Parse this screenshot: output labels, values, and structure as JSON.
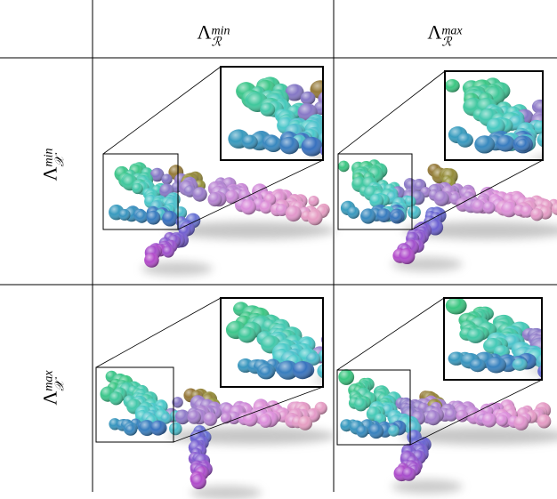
{
  "columns": [
    {
      "symbol": "Λ",
      "subscript": "ℛ",
      "superscript": "min"
    },
    {
      "symbol": "Λ",
      "subscript": "ℛ",
      "superscript": "max"
    }
  ],
  "rows": [
    {
      "symbol": "Λ",
      "subscript": "𝒳",
      "superscript": "min"
    },
    {
      "symbol": "Λ",
      "subscript": "𝒳",
      "superscript": "max"
    }
  ]
}
